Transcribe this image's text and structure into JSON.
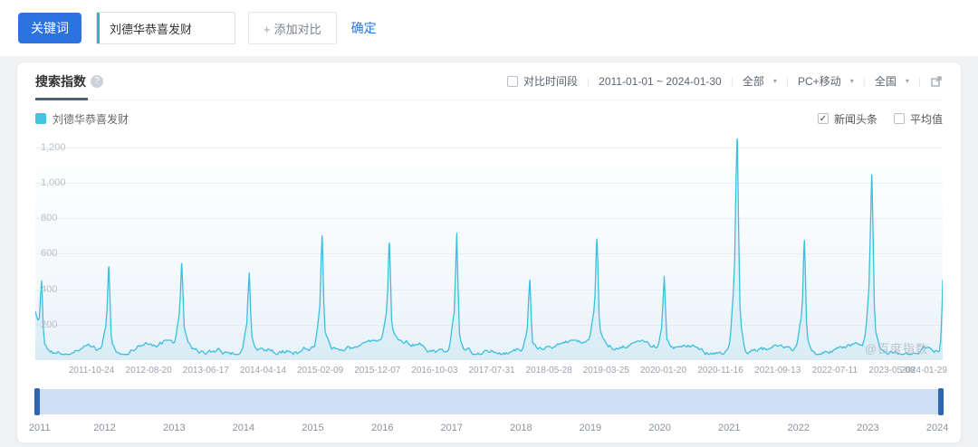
{
  "toolbar": {
    "keyword_label": "关键词",
    "keyword_value": "刘德华恭喜发财",
    "add_compare_label": "添加对比",
    "add_plus": "+",
    "confirm_label": "确定"
  },
  "panel": {
    "tab_label": "搜索指数",
    "help_glyph": "?",
    "compare_period_label": "对比时间段",
    "date_range": "2011-01-01 ~ 2024-01-30",
    "scope_filter": "全部",
    "device_filter": "PC+移动",
    "region_filter": "全国",
    "caret_glyph": "▾",
    "divider_glyph": "|",
    "legend_keyword": "刘德华恭喜发财",
    "news_toggle_label": "新闻头条",
    "news_toggle_checked": "✓",
    "average_toggle_label": "平均值",
    "watermark": "@百度指数"
  },
  "chart_data": {
    "type": "line",
    "title": "搜索指数",
    "series_name": "刘德华恭喜发财",
    "line_color": "#3bbfdd",
    "area_color": "rgba(80,190,220,0.10)",
    "x_range": [
      "2011-01-01",
      "2024-01-30"
    ],
    "total_days": 4777,
    "ylim": [
      0,
      1250
    ],
    "grid": true,
    "y_ticks": [
      {
        "label": "1,200",
        "value": 1200
      },
      {
        "label": "1,000",
        "value": 1000
      },
      {
        "label": "800",
        "value": 800
      },
      {
        "label": "600",
        "value": 600
      },
      {
        "label": "400",
        "value": 400
      },
      {
        "label": "200",
        "value": 200
      }
    ],
    "x_ticks": [
      {
        "label": "2011-10-24",
        "day": 296
      },
      {
        "label": "2012-08-20",
        "day": 597
      },
      {
        "label": "2013-06-17",
        "day": 898
      },
      {
        "label": "2014-04-14",
        "day": 1199
      },
      {
        "label": "2015-02-09",
        "day": 1500
      },
      {
        "label": "2015-12-07",
        "day": 1801
      },
      {
        "label": "2016-10-03",
        "day": 2102
      },
      {
        "label": "2017-07-31",
        "day": 2403
      },
      {
        "label": "2018-05-28",
        "day": 2704
      },
      {
        "label": "2019-03-25",
        "day": 3005
      },
      {
        "label": "2020-01-20",
        "day": 3306
      },
      {
        "label": "2020-11-16",
        "day": 3607
      },
      {
        "label": "2021-09-13",
        "day": 3908
      },
      {
        "label": "2022-07-11",
        "day": 4209
      },
      {
        "label": "2023-05-08",
        "day": 4510
      },
      {
        "label": "2024-01-29",
        "day": 4776
      }
    ],
    "annual_peaks": [
      {
        "date": "2011-02-03",
        "day": 33,
        "value": 400,
        "width": 6
      },
      {
        "date": "2012-01-23",
        "day": 387,
        "value": 480,
        "width": 6
      },
      {
        "date": "2013-02-10",
        "day": 771,
        "value": 440,
        "width": 6
      },
      {
        "date": "2014-01-31",
        "day": 1126,
        "value": 430,
        "width": 6
      },
      {
        "date": "2015-02-19",
        "day": 1510,
        "value": 590,
        "width": 6
      },
      {
        "date": "2016-02-08",
        "day": 1864,
        "value": 560,
        "width": 6
      },
      {
        "date": "2017-01-28",
        "day": 2219,
        "value": 640,
        "width": 6
      },
      {
        "date": "2018-02-16",
        "day": 2603,
        "value": 410,
        "width": 6
      },
      {
        "date": "2019-02-05",
        "day": 2957,
        "value": 560,
        "width": 6
      },
      {
        "date": "2020-01-25",
        "day": 3311,
        "value": 420,
        "width": 6
      },
      {
        "date": "2021-02-12",
        "day": 3695,
        "value": 1100,
        "width": 7
      },
      {
        "date": "2022-02-01",
        "day": 4049,
        "value": 600,
        "width": 6
      },
      {
        "date": "2023-01-22",
        "day": 4404,
        "value": 920,
        "width": 7
      }
    ],
    "edge_ramps": [
      {
        "day": -4,
        "amplitude": 200,
        "width": 12
      },
      {
        "day": 4787,
        "amplitude": 740,
        "width": 9
      }
    ],
    "baseline": {
      "start": 62,
      "min": 32,
      "max": 112
    },
    "start_value": 240,
    "end_value": 460,
    "slider_years": [
      {
        "label": "2011",
        "day": 0
      },
      {
        "label": "2012",
        "day": 365
      },
      {
        "label": "2013",
        "day": 731
      },
      {
        "label": "2014",
        "day": 1096
      },
      {
        "label": "2015",
        "day": 1461
      },
      {
        "label": "2016",
        "day": 1827
      },
      {
        "label": "2017",
        "day": 2192
      },
      {
        "label": "2018",
        "day": 2557
      },
      {
        "label": "2019",
        "day": 2922
      },
      {
        "label": "2020",
        "day": 3288
      },
      {
        "label": "2021",
        "day": 3653
      },
      {
        "label": "2022",
        "day": 4018
      },
      {
        "label": "2023",
        "day": 4383
      },
      {
        "label": "2024",
        "day": 4749
      }
    ]
  }
}
